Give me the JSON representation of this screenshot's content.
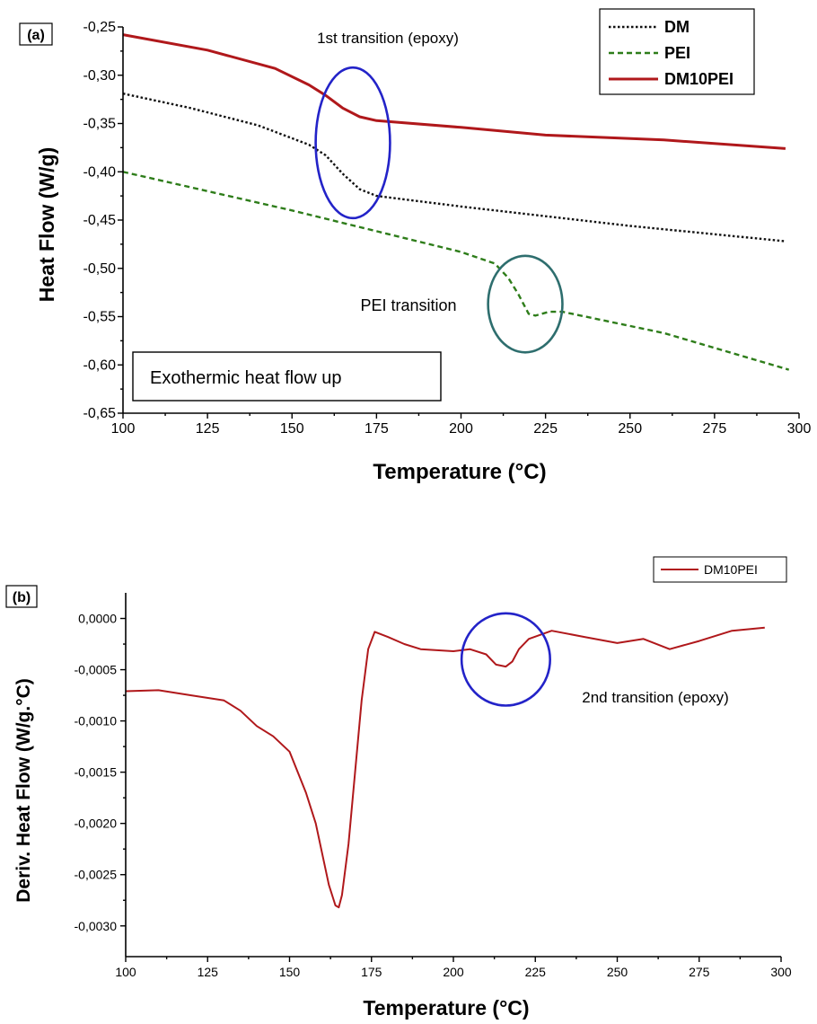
{
  "chart_data": [
    {
      "type": "line",
      "panel_label": "(a)",
      "xlabel": "Temperature (°C)",
      "ylabel": "Heat Flow (W/g)",
      "xlim": [
        100,
        300
      ],
      "ylim": [
        -0.65,
        -0.25
      ],
      "x_ticks": [
        100,
        125,
        150,
        175,
        200,
        225,
        250,
        275,
        300
      ],
      "x_tick_labels": [
        "100",
        "125",
        "150",
        "175",
        "200",
        "225",
        "250",
        "275",
        "300"
      ],
      "y_ticks": [
        -0.25,
        -0.3,
        -0.35,
        -0.4,
        -0.45,
        -0.5,
        -0.55,
        -0.6,
        -0.65
      ],
      "y_tick_labels": [
        "-0,25",
        "-0,30",
        "-0,35",
        "-0,40",
        "-0,45",
        "-0,50",
        "-0,55",
        "-0,60",
        "-0,65"
      ],
      "grid": false,
      "legend_position": "top-right",
      "series": [
        {
          "name": "DM",
          "color": "#111111",
          "style": "dotted",
          "points": [
            [
              100,
              -0.319
            ],
            [
              120,
              -0.334
            ],
            [
              140,
              -0.352
            ],
            [
              155,
              -0.372
            ],
            [
              160,
              -0.383
            ],
            [
              165,
              -0.402
            ],
            [
              170,
              -0.418
            ],
            [
              175,
              -0.425
            ],
            [
              200,
              -0.436
            ],
            [
              250,
              -0.456
            ],
            [
              296,
              -0.472
            ]
          ]
        },
        {
          "name": "PEI",
          "color": "#2e7d1a",
          "style": "dashed",
          "points": [
            [
              100,
              -0.4
            ],
            [
              150,
              -0.44
            ],
            [
              200,
              -0.483
            ],
            [
              210,
              -0.495
            ],
            [
              214,
              -0.51
            ],
            [
              217,
              -0.527
            ],
            [
              220,
              -0.547
            ],
            [
              222,
              -0.549
            ],
            [
              226,
              -0.545
            ],
            [
              230,
              -0.545
            ],
            [
              260,
              -0.567
            ],
            [
              297,
              -0.605
            ]
          ]
        },
        {
          "name": "DM10PEI",
          "color": "#b0181b",
          "style": "solid",
          "points": [
            [
              100,
              -0.258
            ],
            [
              125,
              -0.274
            ],
            [
              145,
              -0.293
            ],
            [
              155,
              -0.31
            ],
            [
              160,
              -0.321
            ],
            [
              165,
              -0.334
            ],
            [
              170,
              -0.343
            ],
            [
              175,
              -0.347
            ],
            [
              200,
              -0.354
            ],
            [
              225,
              -0.362
            ],
            [
              260,
              -0.367
            ],
            [
              296,
              -0.376
            ]
          ]
        }
      ],
      "annotations": [
        {
          "text": "1st transition (epoxy)",
          "color": "#2323c8"
        },
        {
          "text": "PEI transition",
          "color": "#2323c8"
        },
        {
          "text": "Exothermic heat flow up",
          "color": "#000000"
        }
      ],
      "circles": [
        {
          "name": "epoxy-1st",
          "center": [
            168,
            -0.37
          ],
          "rx_deg": 11,
          "ry_wg": 0.078,
          "color": "#2323c8"
        },
        {
          "name": "pei",
          "center": [
            219,
            -0.537
          ],
          "rx_deg": 11,
          "ry_wg": 0.05,
          "color": "#2e6e6e"
        }
      ]
    },
    {
      "type": "line",
      "panel_label": "(b)",
      "xlabel": "Temperature (°C)",
      "ylabel": "Deriv. Heat Flow (W/g.°C)",
      "xlim": [
        100,
        300
      ],
      "ylim": [
        -0.0033,
        0.00025
      ],
      "x_ticks": [
        100,
        125,
        150,
        175,
        200,
        225,
        250,
        275,
        300
      ],
      "x_tick_labels": [
        "100",
        "125",
        "150",
        "175",
        "200",
        "225",
        "250",
        "275",
        "300"
      ],
      "y_ticks": [
        0.0,
        -0.0005,
        -0.001,
        -0.0015,
        -0.002,
        -0.0025,
        -0.003
      ],
      "y_tick_labels": [
        "0,0000",
        "-0,0005",
        "-0,0010",
        "-0,0015",
        "-0,0020",
        "-0,0025",
        "-0,0030"
      ],
      "grid": false,
      "legend_position": "top-right",
      "series": [
        {
          "name": "DM10PEI",
          "color": "#b0181b",
          "style": "solid",
          "points": [
            [
              100,
              -0.00071
            ],
            [
              110,
              -0.0007
            ],
            [
              120,
              -0.00075
            ],
            [
              130,
              -0.0008
            ],
            [
              135,
              -0.0009
            ],
            [
              140,
              -0.00105
            ],
            [
              145,
              -0.00115
            ],
            [
              150,
              -0.0013
            ],
            [
              155,
              -0.0017
            ],
            [
              158,
              -0.002
            ],
            [
              160,
              -0.0023
            ],
            [
              162,
              -0.0026
            ],
            [
              164,
              -0.0028
            ],
            [
              165,
              -0.00282
            ],
            [
              166,
              -0.0027
            ],
            [
              168,
              -0.0022
            ],
            [
              170,
              -0.0015
            ],
            [
              172,
              -0.0008
            ],
            [
              174,
              -0.0003
            ],
            [
              176,
              -0.00013
            ],
            [
              180,
              -0.00018
            ],
            [
              185,
              -0.00025
            ],
            [
              190,
              -0.0003
            ],
            [
              200,
              -0.00032
            ],
            [
              205,
              -0.0003
            ],
            [
              210,
              -0.00035
            ],
            [
              213,
              -0.00045
            ],
            [
              216,
              -0.00047
            ],
            [
              218,
              -0.00042
            ],
            [
              220,
              -0.0003
            ],
            [
              223,
              -0.0002
            ],
            [
              230,
              -0.00012
            ],
            [
              240,
              -0.00018
            ],
            [
              250,
              -0.00024
            ],
            [
              258,
              -0.0002
            ],
            [
              266,
              -0.0003
            ],
            [
              275,
              -0.00022
            ],
            [
              285,
              -0.00012
            ],
            [
              295,
              -9e-05
            ]
          ]
        }
      ],
      "annotations": [
        {
          "text": "2nd transition (epoxy)",
          "color": "#2323c8"
        }
      ],
      "circles": [
        {
          "name": "epoxy-2nd",
          "center": [
            216,
            -0.0004
          ],
          "rx_deg": 13.5,
          "ry_wg": 0.00045,
          "color": "#2323c8"
        }
      ]
    }
  ]
}
